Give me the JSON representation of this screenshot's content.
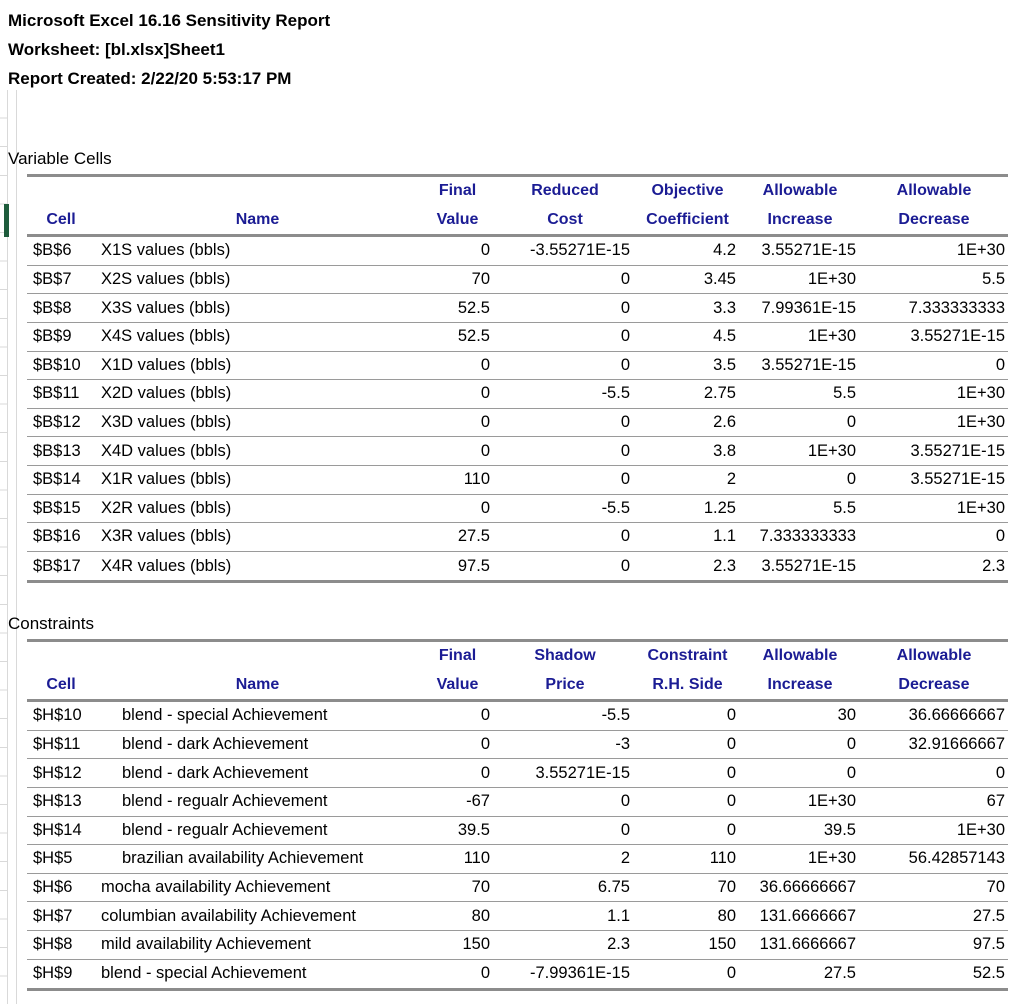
{
  "colors": {
    "header_blue": "#1b1c94",
    "thick_line": "#8c8c8c",
    "thin_line": "#9a9a9a",
    "grid_line": "#d9d9d9",
    "row_indicator_green": "#1e5c3c"
  },
  "report": {
    "title": "Microsoft Excel 16.16 Sensitivity Report",
    "worksheet": "Worksheet: [bl.xlsx]Sheet1",
    "created": "Report Created: 2/22/20 5:53:17 PM"
  },
  "variable_cells": {
    "label": "Variable Cells",
    "columns": [
      {
        "top": "",
        "bottom": "Cell"
      },
      {
        "top": "",
        "bottom": "Name"
      },
      {
        "top": "Final",
        "bottom": "Value"
      },
      {
        "top": "Reduced",
        "bottom": "Cost"
      },
      {
        "top": "Objective",
        "bottom": "Coefficient"
      },
      {
        "top": "Allowable",
        "bottom": "Increase"
      },
      {
        "top": "Allowable",
        "bottom": "Decrease"
      }
    ],
    "rows": [
      {
        "cell": "$B$6",
        "name": "X1S values (bbls)",
        "final_value": "0",
        "reduced_cost": "-3.55271E-15",
        "objective_coefficient": "4.2",
        "allowable_increase": "3.55271E-15",
        "allowable_decrease": "1E+30"
      },
      {
        "cell": "$B$7",
        "name": "X2S values (bbls)",
        "final_value": "70",
        "reduced_cost": "0",
        "objective_coefficient": "3.45",
        "allowable_increase": "1E+30",
        "allowable_decrease": "5.5"
      },
      {
        "cell": "$B$8",
        "name": "X3S values (bbls)",
        "final_value": "52.5",
        "reduced_cost": "0",
        "objective_coefficient": "3.3",
        "allowable_increase": "7.99361E-15",
        "allowable_decrease": "7.333333333"
      },
      {
        "cell": "$B$9",
        "name": "X4S values (bbls)",
        "final_value": "52.5",
        "reduced_cost": "0",
        "objective_coefficient": "4.5",
        "allowable_increase": "1E+30",
        "allowable_decrease": "3.55271E-15"
      },
      {
        "cell": "$B$10",
        "name": "X1D values (bbls)",
        "final_value": "0",
        "reduced_cost": "0",
        "objective_coefficient": "3.5",
        "allowable_increase": "3.55271E-15",
        "allowable_decrease": "0"
      },
      {
        "cell": "$B$11",
        "name": "X2D values (bbls)",
        "final_value": "0",
        "reduced_cost": "-5.5",
        "objective_coefficient": "2.75",
        "allowable_increase": "5.5",
        "allowable_decrease": "1E+30"
      },
      {
        "cell": "$B$12",
        "name": "X3D values (bbls)",
        "final_value": "0",
        "reduced_cost": "0",
        "objective_coefficient": "2.6",
        "allowable_increase": "0",
        "allowable_decrease": "1E+30"
      },
      {
        "cell": "$B$13",
        "name": "X4D values (bbls)",
        "final_value": "0",
        "reduced_cost": "0",
        "objective_coefficient": "3.8",
        "allowable_increase": "1E+30",
        "allowable_decrease": "3.55271E-15"
      },
      {
        "cell": "$B$14",
        "name": "X1R values (bbls)",
        "final_value": "110",
        "reduced_cost": "0",
        "objective_coefficient": "2",
        "allowable_increase": "0",
        "allowable_decrease": "3.55271E-15"
      },
      {
        "cell": "$B$15",
        "name": "X2R values (bbls)",
        "final_value": "0",
        "reduced_cost": "-5.5",
        "objective_coefficient": "1.25",
        "allowable_increase": "5.5",
        "allowable_decrease": "1E+30"
      },
      {
        "cell": "$B$16",
        "name": "X3R values (bbls)",
        "final_value": "27.5",
        "reduced_cost": "0",
        "objective_coefficient": "1.1",
        "allowable_increase": "7.333333333",
        "allowable_decrease": "0"
      },
      {
        "cell": "$B$17",
        "name": "X4R values (bbls)",
        "final_value": "97.5",
        "reduced_cost": "0",
        "objective_coefficient": "2.3",
        "allowable_increase": "3.55271E-15",
        "allowable_decrease": "2.3"
      }
    ]
  },
  "constraints": {
    "label": "Constraints",
    "columns": [
      {
        "top": "",
        "bottom": "Cell"
      },
      {
        "top": "",
        "bottom": "Name"
      },
      {
        "top": "Final",
        "bottom": "Value"
      },
      {
        "top": "Shadow",
        "bottom": "Price"
      },
      {
        "top": "Constraint",
        "bottom": "R.H. Side"
      },
      {
        "top": "Allowable",
        "bottom": "Increase"
      },
      {
        "top": "Allowable",
        "bottom": "Decrease"
      }
    ],
    "rows": [
      {
        "cell": "$H$10",
        "name": "blend - special Achievement",
        "indent": true,
        "final_value": "0",
        "shadow_price": "-5.5",
        "constraint_rh_side": "0",
        "allowable_increase": "30",
        "allowable_decrease": "36.66666667"
      },
      {
        "cell": "$H$11",
        "name": "blend - dark Achievement",
        "indent": true,
        "final_value": "0",
        "shadow_price": "-3",
        "constraint_rh_side": "0",
        "allowable_increase": "0",
        "allowable_decrease": "32.91666667"
      },
      {
        "cell": "$H$12",
        "name": "blend - dark Achievement",
        "indent": true,
        "final_value": "0",
        "shadow_price": "3.55271E-15",
        "constraint_rh_side": "0",
        "allowable_increase": "0",
        "allowable_decrease": "0"
      },
      {
        "cell": "$H$13",
        "name": "blend - regualr Achievement",
        "indent": true,
        "final_value": "-67",
        "shadow_price": "0",
        "constraint_rh_side": "0",
        "allowable_increase": "1E+30",
        "allowable_decrease": "67"
      },
      {
        "cell": "$H$14",
        "name": "blend - regualr Achievement",
        "indent": true,
        "final_value": "39.5",
        "shadow_price": "0",
        "constraint_rh_side": "0",
        "allowable_increase": "39.5",
        "allowable_decrease": "1E+30"
      },
      {
        "cell": "$H$5",
        "name": "brazilian availability Achievement",
        "indent": true,
        "final_value": "110",
        "shadow_price": "2",
        "constraint_rh_side": "110",
        "allowable_increase": "1E+30",
        "allowable_decrease": "56.42857143"
      },
      {
        "cell": "$H$6",
        "name": "mocha availability Achievement",
        "indent": false,
        "final_value": "70",
        "shadow_price": "6.75",
        "constraint_rh_side": "70",
        "allowable_increase": "36.66666667",
        "allowable_decrease": "70"
      },
      {
        "cell": "$H$7",
        "name": "columbian availability Achievement",
        "indent": false,
        "final_value": "80",
        "shadow_price": "1.1",
        "constraint_rh_side": "80",
        "allowable_increase": "131.6666667",
        "allowable_decrease": "27.5"
      },
      {
        "cell": "$H$8",
        "name": "mild availability Achievement",
        "indent": false,
        "final_value": "150",
        "shadow_price": "2.3",
        "constraint_rh_side": "150",
        "allowable_increase": "131.6666667",
        "allowable_decrease": "97.5"
      },
      {
        "cell": "$H$9",
        "name": "blend - special Achievement",
        "indent": false,
        "final_value": "0",
        "shadow_price": "-7.99361E-15",
        "constraint_rh_side": "0",
        "allowable_increase": "27.5",
        "allowable_decrease": "52.5"
      }
    ]
  }
}
